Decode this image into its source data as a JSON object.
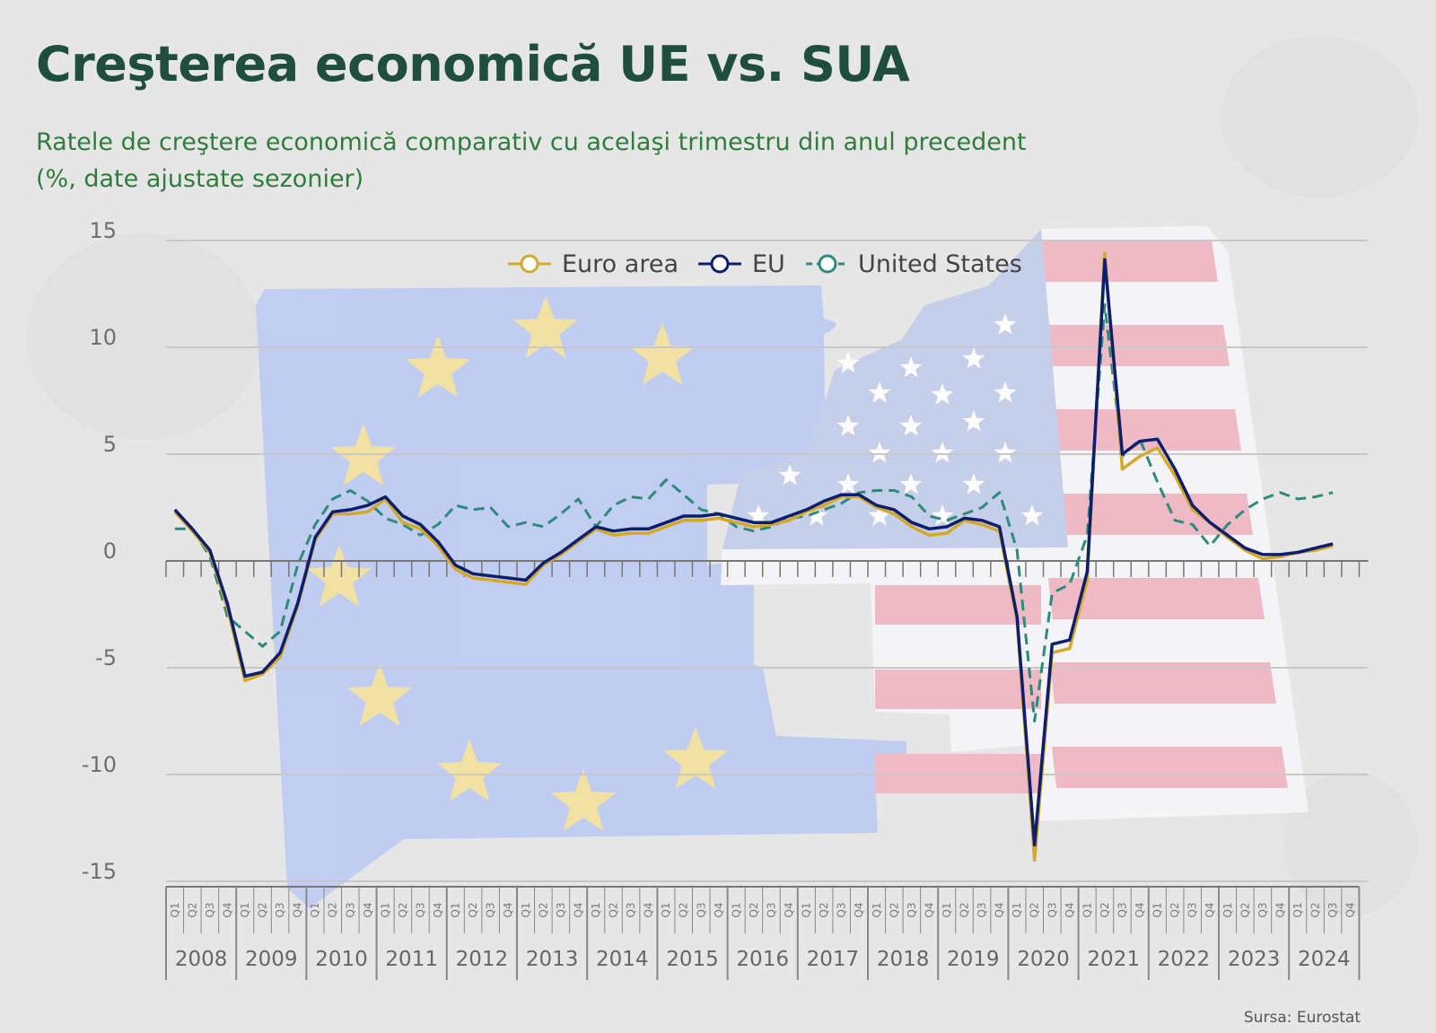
{
  "header": {
    "title": "Creşterea economică UE vs. SUA",
    "subtitle_line1": "Ratele de creştere economică comparativ cu acelaşi trimestru din anul precedent",
    "subtitle_line2": "(%, date ajustate sezonier)"
  },
  "footer": {
    "source": "Sursa: Eurostat"
  },
  "colors": {
    "euro_area": "#d4a92a",
    "eu": "#0b1f6e",
    "united_states": "#2e8a7a",
    "eu_flag_blue": "#bccbf2",
    "eu_flag_star": "#f3e29c",
    "us_flag_red": "#efb6c2",
    "us_flag_blue": "#c3cdeb"
  },
  "chart_data": {
    "type": "line",
    "title": "",
    "xlabel": "",
    "ylabel": "",
    "ylim": [
      -15,
      15
    ],
    "yticks": [
      15,
      10,
      5,
      0,
      -5,
      -10,
      -15
    ],
    "years": [
      "2008",
      "2009",
      "2010",
      "2011",
      "2012",
      "2013",
      "2014",
      "2015",
      "2016",
      "2017",
      "2018",
      "2019",
      "2020",
      "2021",
      "2022",
      "2023",
      "2024"
    ],
    "quarter_labels": [
      "Q1",
      "Q2",
      "Q3",
      "Q4"
    ],
    "legend_position": "top-center",
    "grid": true,
    "series": [
      {
        "name": "Euro area",
        "style": "solid",
        "values": [
          2.3,
          1.4,
          0.4,
          -2.2,
          -5.6,
          -5.3,
          -4.5,
          -2.1,
          1.0,
          2.2,
          2.2,
          2.3,
          2.9,
          1.8,
          1.5,
          0.7,
          -0.4,
          -0.8,
          -0.9,
          -1.0,
          -1.1,
          -0.2,
          0.3,
          0.9,
          1.5,
          1.2,
          1.3,
          1.3,
          1.6,
          1.9,
          1.9,
          2.0,
          1.8,
          1.6,
          1.7,
          1.9,
          2.3,
          2.6,
          3.0,
          3.0,
          2.5,
          2.2,
          1.6,
          1.2,
          1.3,
          1.9,
          1.7,
          1.4,
          -2.8,
          -14.0,
          -4.3,
          -4.1,
          -0.9,
          14.4,
          4.3,
          4.9,
          5.3,
          4.0,
          2.4,
          1.8,
          1.1,
          0.5,
          0.1,
          0.2,
          0.4,
          0.5,
          0.7
        ]
      },
      {
        "name": "EU",
        "style": "solid",
        "values": [
          2.4,
          1.5,
          0.5,
          -2.0,
          -5.4,
          -5.2,
          -4.3,
          -2.0,
          1.1,
          2.3,
          2.4,
          2.6,
          3.0,
          2.1,
          1.7,
          0.9,
          -0.2,
          -0.6,
          -0.7,
          -0.8,
          -0.9,
          -0.1,
          0.4,
          1.0,
          1.6,
          1.4,
          1.5,
          1.5,
          1.8,
          2.1,
          2.1,
          2.2,
          2.0,
          1.8,
          1.8,
          2.1,
          2.4,
          2.8,
          3.1,
          3.1,
          2.6,
          2.4,
          1.8,
          1.5,
          1.6,
          2.0,
          1.9,
          1.6,
          -2.6,
          -13.3,
          -3.9,
          -3.7,
          -0.5,
          14.1,
          5.0,
          5.6,
          5.7,
          4.3,
          2.6,
          1.8,
          1.2,
          0.6,
          0.3,
          0.3,
          0.4,
          0.6,
          0.8
        ]
      },
      {
        "name": "United States",
        "style": "dashed",
        "values": [
          1.5,
          1.5,
          0.2,
          -2.6,
          -3.3,
          -4.0,
          -3.3,
          -0.2,
          1.7,
          2.9,
          3.3,
          2.8,
          2.0,
          1.7,
          1.2,
          1.7,
          2.6,
          2.4,
          2.5,
          1.6,
          1.8,
          1.6,
          2.2,
          2.9,
          1.6,
          2.6,
          3.0,
          2.9,
          3.8,
          3.1,
          2.4,
          2.2,
          1.6,
          1.4,
          1.6,
          2.0,
          2.1,
          2.4,
          2.7,
          3.2,
          3.3,
          3.3,
          3.0,
          2.1,
          1.9,
          2.2,
          2.5,
          3.2,
          0.5,
          -7.5,
          -1.5,
          -1.1,
          1.2,
          12.0,
          4.9,
          5.7,
          3.7,
          1.9,
          1.7,
          0.7,
          1.7,
          2.4,
          2.9,
          3.2,
          2.9,
          3.0,
          3.2
        ]
      }
    ]
  }
}
